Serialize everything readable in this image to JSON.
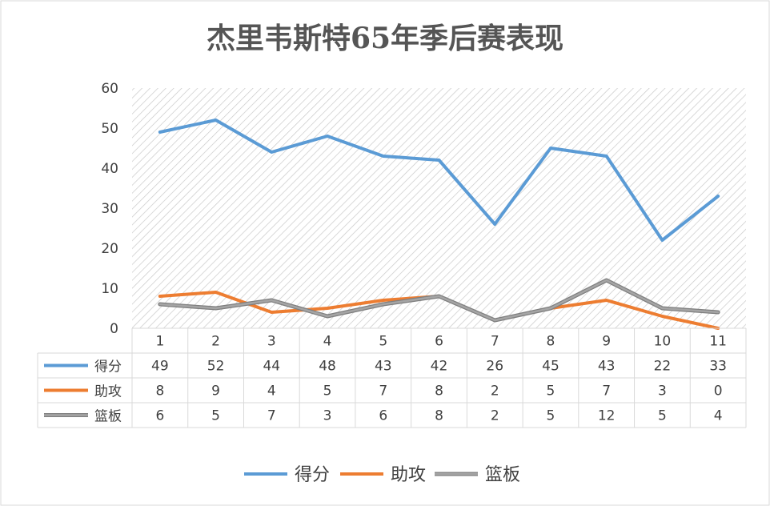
{
  "chart_data": {
    "type": "line",
    "title": "杰里韦斯特65年季后赛表现",
    "categories": [
      "1",
      "2",
      "3",
      "4",
      "5",
      "6",
      "7",
      "8",
      "9",
      "10",
      "11"
    ],
    "series": [
      {
        "name": "得分",
        "color": "#5b9bd5",
        "values": [
          49,
          52,
          44,
          48,
          43,
          42,
          26,
          45,
          43,
          22,
          33
        ]
      },
      {
        "name": "助攻",
        "color": "#ed7d31",
        "values": [
          8,
          9,
          4,
          5,
          7,
          8,
          2,
          5,
          7,
          3,
          0
        ]
      },
      {
        "name": "篮板",
        "color": "#a5a5a5",
        "values": [
          6,
          5,
          7,
          3,
          6,
          8,
          2,
          5,
          12,
          5,
          4
        ]
      }
    ],
    "y_ticks": [
      "0",
      "10",
      "20",
      "30",
      "40",
      "50",
      "60"
    ],
    "ylim": [
      0,
      60
    ],
    "grid": false,
    "data_table": true,
    "legend": "bottom"
  }
}
